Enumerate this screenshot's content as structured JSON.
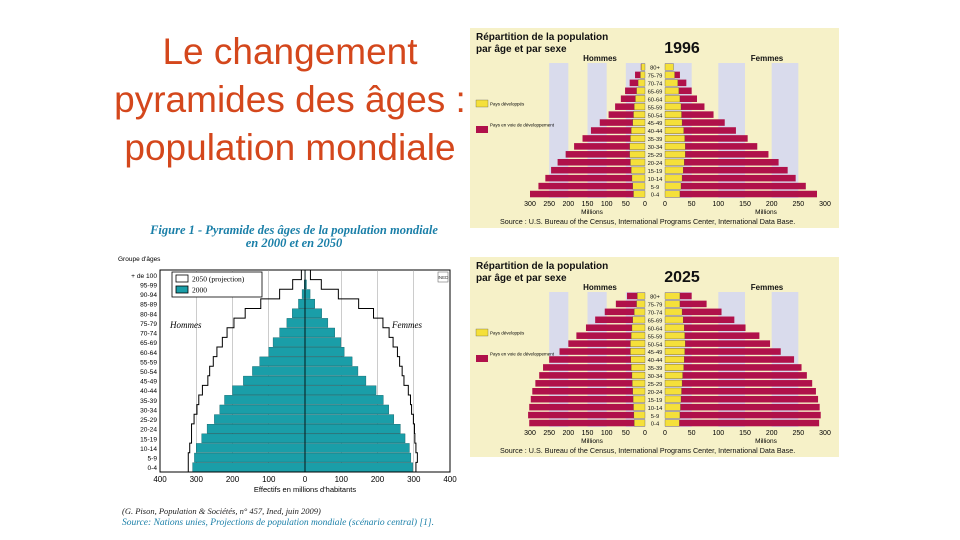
{
  "slide": {
    "title": "Le changement pyramides des âges : population mondiale"
  },
  "figure1": {
    "caption_line1": "Figure 1 - Pyramide des âges de la population mondiale",
    "caption_line2": "en 2000 et en 2050",
    "credit": "(G. Pison, Population & Sociétés, n° 457, Ined, juin 2009)",
    "source": "Source: Nations unies, Projections de population mondiale (scénario central) [1]."
  },
  "panels": [
    {
      "title_line1": "Répartition de la population",
      "title_line2": "par âge et par sexe",
      "year": "1996",
      "left_label": "Hommes",
      "right_label": "Femmes",
      "legend_developed": "Pays développés",
      "legend_developing": "Pays en voie de développement",
      "unit": "Millions",
      "source": "Source : U.S. Bureau of the Census, International Programs Center, International Data Base."
    },
    {
      "title_line1": "Répartition de la population",
      "title_line2": "par âge et par sexe",
      "year": "2025",
      "left_label": "Hommes",
      "right_label": "Femmes",
      "legend_developed": "Pays développés",
      "legend_developing": "Pays en voie de développement",
      "unit": "Millions",
      "source": "Source : U.S. Bureau of the Census, International Programs Center, International Data Base."
    }
  ],
  "colors": {
    "title": "#d4471c",
    "teal": "#1a9ea8",
    "developed": "#f5e03a",
    "developing": "#b0114a",
    "panel_bg": "#f6f1c8",
    "panel_band": "#d9dbec",
    "caption_blue": "#1a7fa8"
  },
  "chart_data": [
    {
      "type": "bar",
      "orientation": "horizontal-pyramid",
      "ylabel": "Groupe d'âges",
      "xlabel": "Effectifs en millions d'habitants",
      "left_label": "Hommes",
      "right_label": "Femmes",
      "logo_text": "INED",
      "categories": [
        "0-4",
        "5-9",
        "10-14",
        "15-19",
        "20-24",
        "25-29",
        "30-34",
        "35-39",
        "40-44",
        "45-49",
        "50-54",
        "55-59",
        "60-64",
        "65-69",
        "70-74",
        "75-79",
        "80-84",
        "85-89",
        "90-94",
        "95-99",
        "+ de 100"
      ],
      "xticks": [
        "400",
        "300",
        "200",
        "100",
        "0",
        "100",
        "200",
        "300",
        "400"
      ],
      "xlim": [
        -400,
        400
      ],
      "series": [
        {
          "name": "2000",
          "male": [
            310,
            305,
            300,
            285,
            270,
            250,
            235,
            222,
            200,
            170,
            145,
            125,
            100,
            88,
            70,
            50,
            35,
            18,
            8,
            2,
            0
          ],
          "female": [
            297,
            292,
            288,
            276,
            263,
            245,
            231,
            216,
            196,
            168,
            146,
            130,
            108,
            99,
            82,
            63,
            46,
            27,
            14,
            4,
            1
          ]
        },
        {
          "name": "2050 (projection)",
          "male": [
            322,
            322,
            318,
            313,
            313,
            306,
            298,
            293,
            283,
            268,
            263,
            253,
            243,
            228,
            215,
            196,
            165,
            122,
            70,
            34,
            10
          ],
          "female": [
            306,
            310,
            306,
            303,
            302,
            299,
            294,
            291,
            285,
            273,
            268,
            261,
            255,
            243,
            232,
            215,
            189,
            148,
            92,
            45,
            15
          ]
        }
      ]
    },
    {
      "type": "bar",
      "orientation": "horizontal-pyramid",
      "title": "Répartition de la population par âge et par sexe",
      "year": "1996",
      "xlabel": "Millions",
      "categories": [
        "0-4",
        "5-9",
        "10-14",
        "15-19",
        "20-24",
        "25-29",
        "30-34",
        "35-39",
        "40-44",
        "45-49",
        "50-54",
        "55-59",
        "60-64",
        "65-69",
        "70-74",
        "75-79",
        "80+"
      ],
      "xticks": [
        "300",
        "250",
        "200",
        "150",
        "100",
        "50",
        "0",
        "0",
        "50",
        "100",
        "150",
        "200",
        "250",
        "300"
      ],
      "xlim": [
        -300,
        300
      ],
      "series": [
        {
          "name": "Pays développés",
          "male": [
            30,
            32,
            34,
            36,
            38,
            40,
            40,
            38,
            36,
            32,
            30,
            28,
            25,
            22,
            18,
            12,
            10
          ],
          "female": [
            28,
            30,
            32,
            34,
            36,
            38,
            38,
            37,
            35,
            32,
            31,
            30,
            28,
            26,
            24,
            18,
            16
          ]
        },
        {
          "name": "Pays en voie de développement",
          "male": [
            300,
            278,
            260,
            245,
            228,
            207,
            185,
            163,
            141,
            118,
            95,
            78,
            63,
            52,
            40,
            26,
            11
          ],
          "female": [
            285,
            264,
            245,
            230,
            213,
            194,
            173,
            155,
            133,
            112,
            91,
            74,
            60,
            50,
            40,
            28,
            14
          ]
        }
      ]
    },
    {
      "type": "bar",
      "orientation": "horizontal-pyramid",
      "title": "Répartition de la population par âge et par sexe",
      "year": "2025",
      "xlabel": "Millions",
      "categories": [
        "0-4",
        "5-9",
        "10-14",
        "15-19",
        "20-24",
        "25-29",
        "30-34",
        "35-39",
        "40-44",
        "45-49",
        "50-54",
        "55-59",
        "60-64",
        "65-69",
        "70-74",
        "75-79",
        "80+"
      ],
      "xticks": [
        "300",
        "250",
        "200",
        "150",
        "100",
        "50",
        "0",
        "0",
        "50",
        "100",
        "150",
        "200",
        "250",
        "300"
      ],
      "xlim": [
        -300,
        300
      ],
      "series": [
        {
          "name": "Pays développés",
          "male": [
            28,
            29,
            30,
            31,
            32,
            33,
            34,
            36,
            37,
            38,
            38,
            36,
            34,
            32,
            28,
            22,
            20
          ],
          "female": [
            27,
            28,
            29,
            30,
            31,
            32,
            33,
            35,
            36,
            37,
            38,
            37,
            36,
            34,
            32,
            28,
            28
          ]
        },
        {
          "name": "Pays en voie de développement",
          "male": [
            302,
            305,
            302,
            298,
            294,
            286,
            276,
            266,
            250,
            223,
            200,
            179,
            154,
            130,
            105,
            76,
            47
          ],
          "female": [
            289,
            292,
            290,
            287,
            283,
            276,
            266,
            256,
            242,
            217,
            197,
            177,
            151,
            130,
            106,
            78,
            50
          ]
        }
      ]
    }
  ]
}
